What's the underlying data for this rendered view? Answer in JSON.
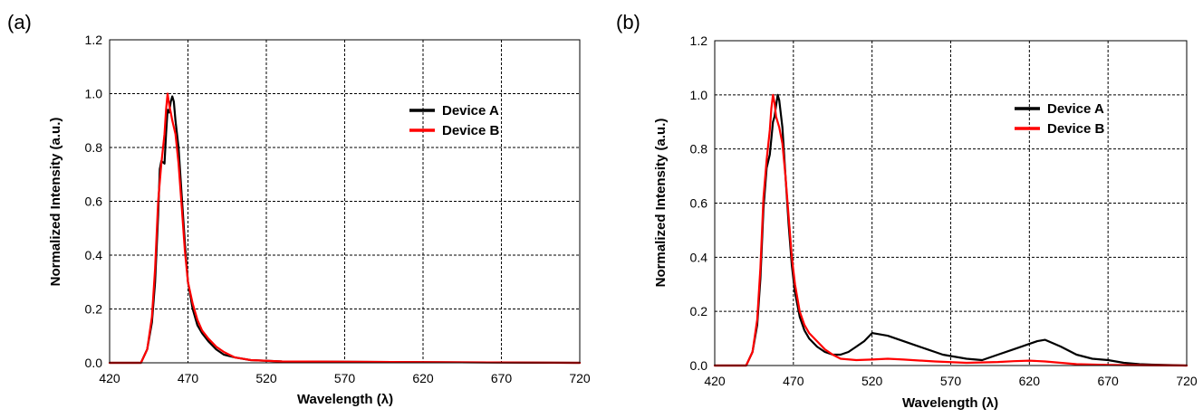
{
  "chart_data": [
    {
      "panel_label": "(a)",
      "type": "line",
      "xlabel": "Wavelength (λ)",
      "ylabel": "Normalized Intensity (a.u.)",
      "xlim": [
        420,
        720
      ],
      "ylim": [
        0,
        1.2
      ],
      "xticks": [
        "420",
        "470",
        "520",
        "570",
        "620",
        "670",
        "720"
      ],
      "yticks": [
        "0.0",
        "0.2",
        "0.4",
        "0.6",
        "0.8",
        "1.0",
        "1.2"
      ],
      "grid": true,
      "legend_position": "top-right",
      "series": [
        {
          "name": "Device A",
          "color": "#000000",
          "x": [
            420,
            440,
            444,
            447,
            449,
            451,
            452,
            453,
            455,
            456,
            457,
            458,
            459,
            460,
            461,
            462,
            464,
            466,
            468,
            470,
            473,
            476,
            479,
            483,
            488,
            493,
            500,
            510,
            530,
            600,
            720
          ],
          "y": [
            0.0,
            0.0,
            0.05,
            0.15,
            0.3,
            0.55,
            0.72,
            0.75,
            0.74,
            0.85,
            0.94,
            0.93,
            0.97,
            0.99,
            0.97,
            0.9,
            0.8,
            0.62,
            0.45,
            0.3,
            0.2,
            0.14,
            0.11,
            0.08,
            0.05,
            0.03,
            0.02,
            0.01,
            0.005,
            0.003,
            0.0
          ]
        },
        {
          "name": "Device B",
          "color": "#ff0000",
          "x": [
            420,
            440,
            444,
            447,
            449,
            451,
            453,
            455,
            456,
            457,
            458,
            459,
            460,
            462,
            464,
            466,
            468,
            470,
            473,
            476,
            479,
            483,
            488,
            493,
            500,
            510,
            530,
            600,
            720
          ],
          "y": [
            0.0,
            0.0,
            0.05,
            0.17,
            0.35,
            0.6,
            0.74,
            0.85,
            0.94,
            1.0,
            0.96,
            0.93,
            0.9,
            0.85,
            0.74,
            0.58,
            0.42,
            0.3,
            0.22,
            0.16,
            0.12,
            0.09,
            0.06,
            0.04,
            0.02,
            0.01,
            0.005,
            0.003,
            0.0
          ]
        }
      ]
    },
    {
      "panel_label": "(b)",
      "type": "line",
      "xlabel": "Wavelength (λ)",
      "ylabel": "Normalized Intensity (a.u.)",
      "xlim": [
        420,
        720
      ],
      "ylim": [
        0,
        1.2
      ],
      "xticks": [
        "420",
        "470",
        "520",
        "570",
        "620",
        "670",
        "720"
      ],
      "yticks": [
        "0.0",
        "0.2",
        "0.4",
        "0.6",
        "0.8",
        "1.0",
        "1.2"
      ],
      "grid": true,
      "legend_position": "top-right",
      "series": [
        {
          "name": "Device A",
          "color": "#000000",
          "x": [
            420,
            440,
            444,
            447,
            449,
            451,
            453,
            455,
            457,
            458,
            459,
            460,
            461,
            463,
            465,
            467,
            469,
            471,
            474,
            477,
            480,
            485,
            490,
            495,
            500,
            505,
            510,
            515,
            520,
            525,
            530,
            540,
            550,
            555,
            560,
            565,
            570,
            575,
            580,
            590,
            600,
            610,
            620,
            625,
            630,
            640,
            650,
            660,
            670,
            680,
            690,
            700,
            720
          ],
          "y": [
            0.0,
            0.0,
            0.05,
            0.15,
            0.32,
            0.58,
            0.73,
            0.78,
            0.9,
            0.92,
            0.96,
            1.0,
            0.98,
            0.88,
            0.7,
            0.52,
            0.37,
            0.27,
            0.18,
            0.13,
            0.1,
            0.07,
            0.05,
            0.04,
            0.04,
            0.05,
            0.07,
            0.09,
            0.12,
            0.115,
            0.11,
            0.09,
            0.07,
            0.06,
            0.05,
            0.04,
            0.035,
            0.03,
            0.025,
            0.02,
            0.04,
            0.06,
            0.08,
            0.09,
            0.095,
            0.07,
            0.04,
            0.025,
            0.02,
            0.01,
            0.005,
            0.003,
            0.0
          ]
        },
        {
          "name": "Device B",
          "color": "#ff0000",
          "x": [
            420,
            440,
            444,
            447,
            449,
            451,
            453,
            455,
            456,
            457,
            458,
            459,
            461,
            463,
            465,
            467,
            469,
            471,
            474,
            477,
            480,
            485,
            490,
            495,
            500,
            510,
            520,
            530,
            540,
            560,
            580,
            600,
            610,
            620,
            630,
            640,
            650,
            670,
            720
          ],
          "y": [
            0.0,
            0.0,
            0.05,
            0.17,
            0.36,
            0.62,
            0.76,
            0.87,
            0.95,
            1.0,
            0.97,
            0.92,
            0.88,
            0.82,
            0.7,
            0.55,
            0.4,
            0.3,
            0.2,
            0.15,
            0.12,
            0.09,
            0.06,
            0.04,
            0.025,
            0.02,
            0.022,
            0.025,
            0.022,
            0.015,
            0.01,
            0.013,
            0.016,
            0.018,
            0.015,
            0.01,
            0.005,
            0.002,
            0.0
          ]
        }
      ]
    }
  ]
}
